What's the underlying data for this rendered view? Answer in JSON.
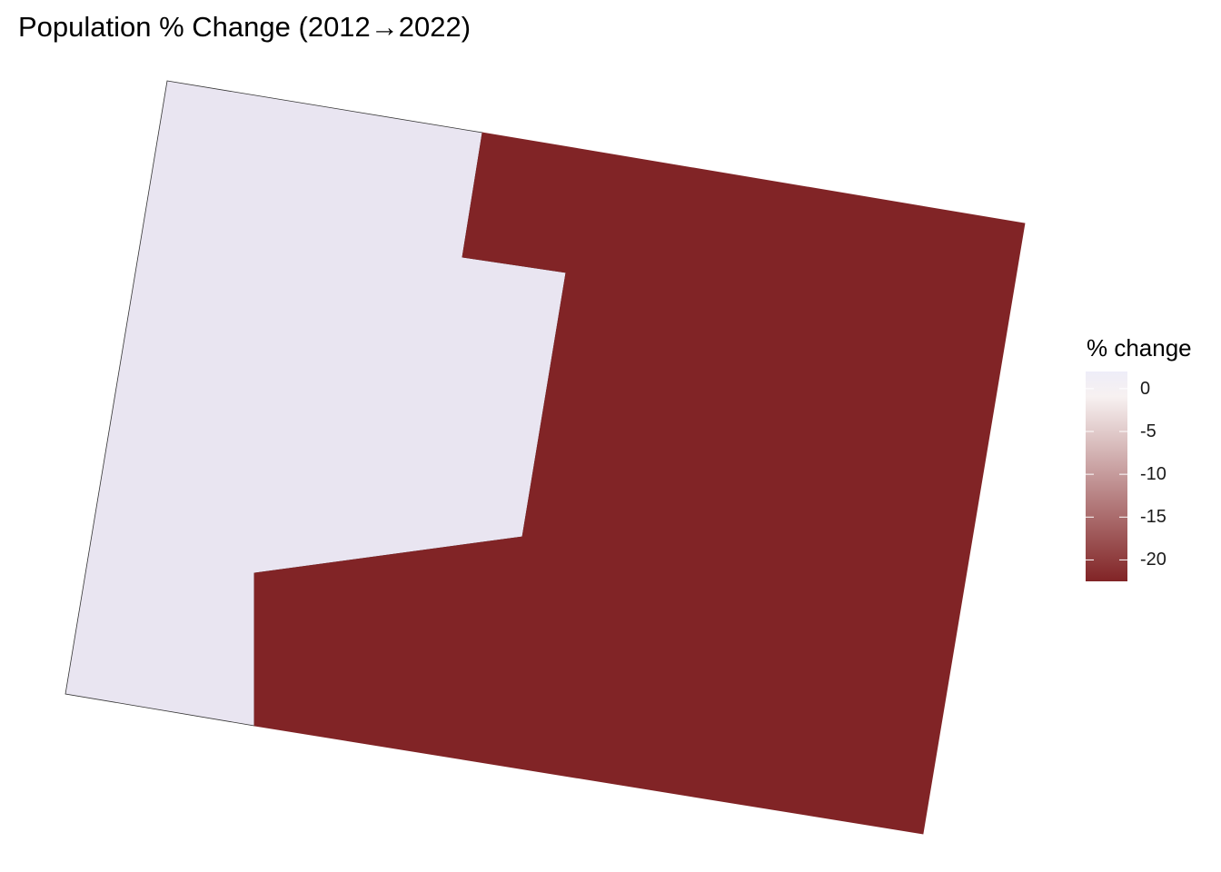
{
  "title": "Population % Change (2012→2022)",
  "map": {
    "regions": [
      {
        "name": "western region",
        "fill": "#E9E5F1",
        "value": 0.8
      },
      {
        "name": "eastern region",
        "fill": "#812426",
        "value": -22.5
      }
    ],
    "outline_color": "#333333"
  },
  "legend": {
    "title": "% change",
    "ticks": [
      "0",
      "-5",
      "-10",
      "-15",
      "-20"
    ],
    "tick_values": [
      0,
      -5,
      -10,
      -15,
      -20
    ],
    "range": [
      -22.5,
      2
    ],
    "color_low": "#812426",
    "color_mid": "#F7F1F1",
    "color_high": "#EEEDF8"
  }
}
